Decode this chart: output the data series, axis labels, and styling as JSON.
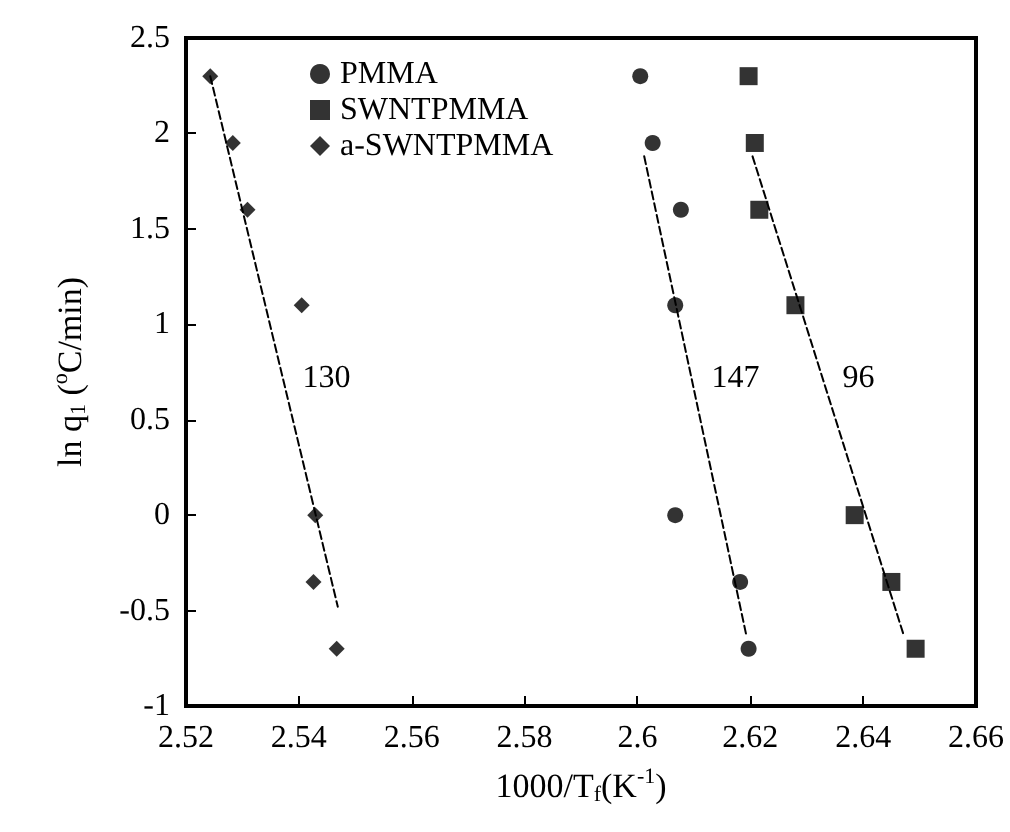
{
  "chart_data": {
    "type": "scatter",
    "xlabel": "1000/T$_{f}$(K$^{-1}$)",
    "ylabel": "ln q$_{1}$ ($^{o}$C/min)",
    "xlim": [
      2.52,
      2.66
    ],
    "xticks": [
      2.52,
      2.54,
      2.56,
      2.58,
      2.6,
      2.62,
      2.64,
      2.66
    ],
    "ylim": [
      -1,
      2.5
    ],
    "yticks": [
      -1,
      -0.5,
      0,
      0.5,
      1,
      1.5,
      2,
      2.5
    ],
    "grid": false,
    "legend": "top left",
    "series": [
      {
        "name": "PMMA",
        "color": "#000000",
        "marker": "circle",
        "x": [
          2.6005,
          2.6027,
          2.6077,
          2.6067,
          2.6067,
          2.6182,
          2.6197
        ],
        "values": [
          2.3,
          1.95,
          1.6,
          1.1,
          0,
          -0.35,
          -0.7
        ]
      },
      {
        "name": "SWNTPMMA",
        "color": "#000000",
        "marker": "square",
        "x": [
          2.6197,
          2.6208,
          2.6216,
          2.628,
          2.6385,
          2.645,
          2.6493
        ],
        "values": [
          2.3,
          1.95,
          1.6,
          1.1,
          0,
          -0.35,
          -0.7
        ]
      },
      {
        "name": "a-SWNTPMMA",
        "color": "#000000",
        "marker": "diamond",
        "x": [
          2.5243,
          2.5283,
          2.5309,
          2.5405,
          2.5429,
          2.5426,
          2.5467
        ],
        "values": [
          2.3,
          1.95,
          1.6,
          1.1,
          0,
          -0.35,
          -0.7
        ]
      },
      {
        "type": "line",
        "color": "#000000",
        "line_style": "dashed",
        "marker": "none",
        "x": [
          2.6012,
          2.6193
        ],
        "values": [
          1.88,
          -0.63
        ]
      },
      {
        "type": "line",
        "color": "#000000",
        "line_style": "dashed",
        "marker": "none",
        "x": [
          2.6204,
          2.6472
        ],
        "values": [
          1.88,
          -0.63
        ]
      },
      {
        "type": "line",
        "color": "#000000",
        "line_style": "dashed",
        "marker": "none",
        "x": [
          2.5243,
          2.5469
        ],
        "values": [
          2.3,
          -0.48
        ]
      }
    ],
    "annotations": [
      {
        "text": "130",
        "x": 2.5371,
        "y": 0.72
      },
      {
        "text": "147",
        "x": 2.6096,
        "y": 0.72
      },
      {
        "text": "96",
        "x": 2.6328,
        "y": 0.72
      }
    ]
  }
}
